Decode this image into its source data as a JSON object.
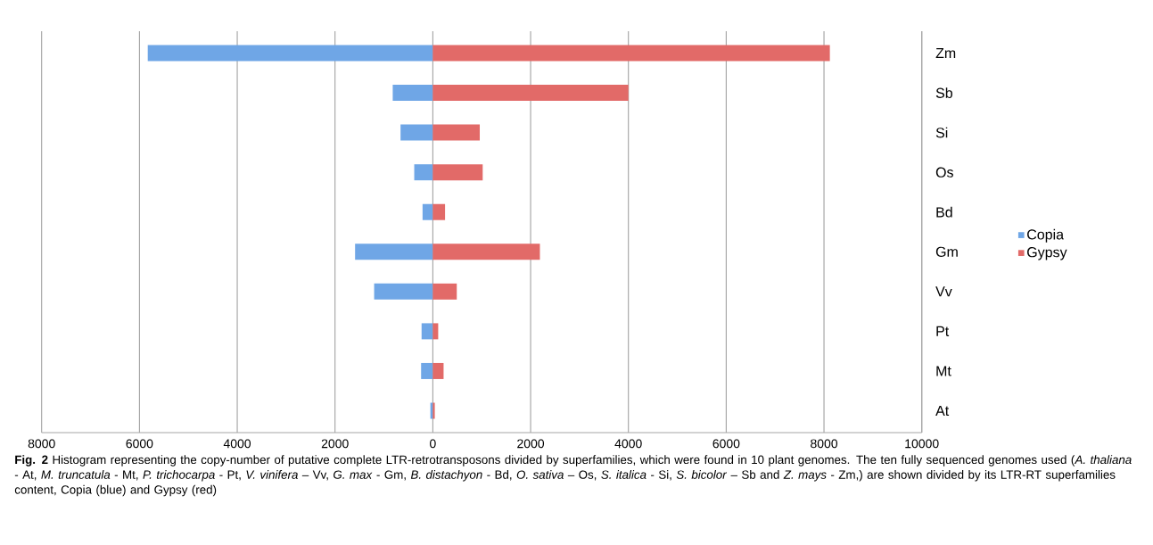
{
  "chart_data": {
    "type": "bar",
    "orientation": "horizontal",
    "stacked": true,
    "categories": [
      "Zm",
      "Sb",
      "Si",
      "Os",
      "Bd",
      "Gm",
      "Vv",
      "Pt",
      "Mt",
      "At"
    ],
    "series": [
      {
        "name": "Copia",
        "color": "#6fa6e6",
        "values": [
          -5830,
          -820,
          -660,
          -380,
          -210,
          -1590,
          -1200,
          -230,
          -240,
          -50
        ]
      },
      {
        "name": "Gypsy",
        "color": "#e26a68",
        "values": [
          8120,
          4000,
          960,
          1020,
          250,
          2190,
          490,
          110,
          220,
          40
        ]
      }
    ],
    "xlim": [
      -8000,
      10000
    ],
    "xticks": [
      {
        "value": -8000,
        "label": "8000"
      },
      {
        "value": -6000,
        "label": "6000"
      },
      {
        "value": -4000,
        "label": "4000"
      },
      {
        "value": -2000,
        "label": "2000"
      },
      0,
      2000,
      4000,
      6000,
      8000,
      10000
    ],
    "grid": "x",
    "legend": "right",
    "annotations": [
      "**Fig. 2** Histogram representing the copy-number of putative complete LTR-retrotransposons divided by superfamilies, which were found in 10 plant genomes. The ten fully sequenced genomes used (*A. thaliana* - At, *M. truncatula* - Mt, *P. trichocarpa* - Pt, *V. vinifera* – Vv, *G. max* - Gm, *B. distachyon* - Bd, *O. sativa* – Os, *S. italica* - Si, *S. bicolor* – Sb and *Z. mays* - Zm,) are shown divided by its LTR-RT superfamilies content, Copia (blue) and Gypsy (red)"
    ]
  }
}
